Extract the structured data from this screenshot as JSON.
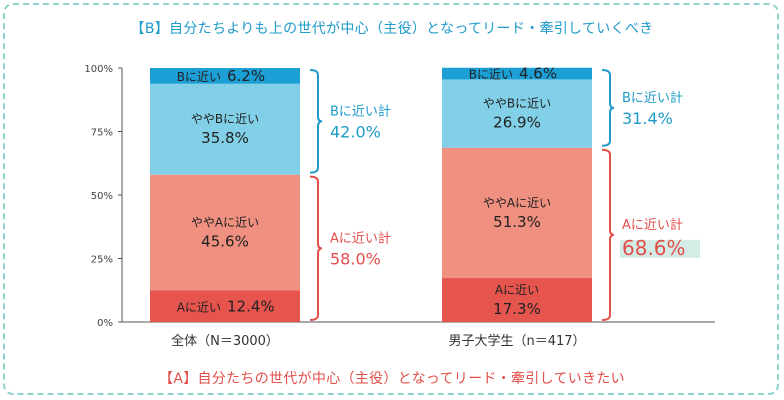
{
  "chart_data": {
    "type": "bar",
    "stacked": true,
    "title_top": "【B】自分たちよりも上の世代が中心（主役）となってリード・牽引していくべき",
    "title_bottom": "【A】自分たちの世代が中心（主役）となってリード・牽引していきたい",
    "y_ticks": [
      "0%",
      "25%",
      "50%",
      "75%",
      "100%"
    ],
    "ylim": [
      0,
      100
    ],
    "categories": [
      "全体（N＝3000）",
      "男子大学生（n＝417）"
    ],
    "series": [
      {
        "name": "Aに近い",
        "label": "Aに近い",
        "values": [
          12.4,
          17.3
        ],
        "display": [
          "12.4%",
          "17.3%"
        ],
        "color": "#e6544e"
      },
      {
        "name": "ややAに近い",
        "label": "ややAに近い",
        "values": [
          45.6,
          51.3
        ],
        "display": [
          "45.6%",
          "51.3%"
        ],
        "color": "#f09080"
      },
      {
        "name": "ややBに近い",
        "label": "ややBに近い",
        "values": [
          35.8,
          26.9
        ],
        "display": [
          "35.8%",
          "26.9%"
        ],
        "color": "#82cfe8"
      },
      {
        "name": "Bに近い",
        "label": "Bに近い",
        "values": [
          6.2,
          4.6
        ],
        "display": [
          "6.2%",
          "4.6%"
        ],
        "color": "#1b9fd4"
      }
    ],
    "totals": {
      "B": {
        "label": "Bに近い計",
        "values": [
          "42.0%",
          "31.4%"
        ],
        "color": "#1e9bc9"
      },
      "A": {
        "label": "Aに近い計",
        "values": [
          "58.0%",
          "68.6%"
        ],
        "color": "#e24f4a"
      }
    },
    "highlight": {
      "group": "A",
      "category_index": 1,
      "color": "#d3ece6"
    }
  }
}
